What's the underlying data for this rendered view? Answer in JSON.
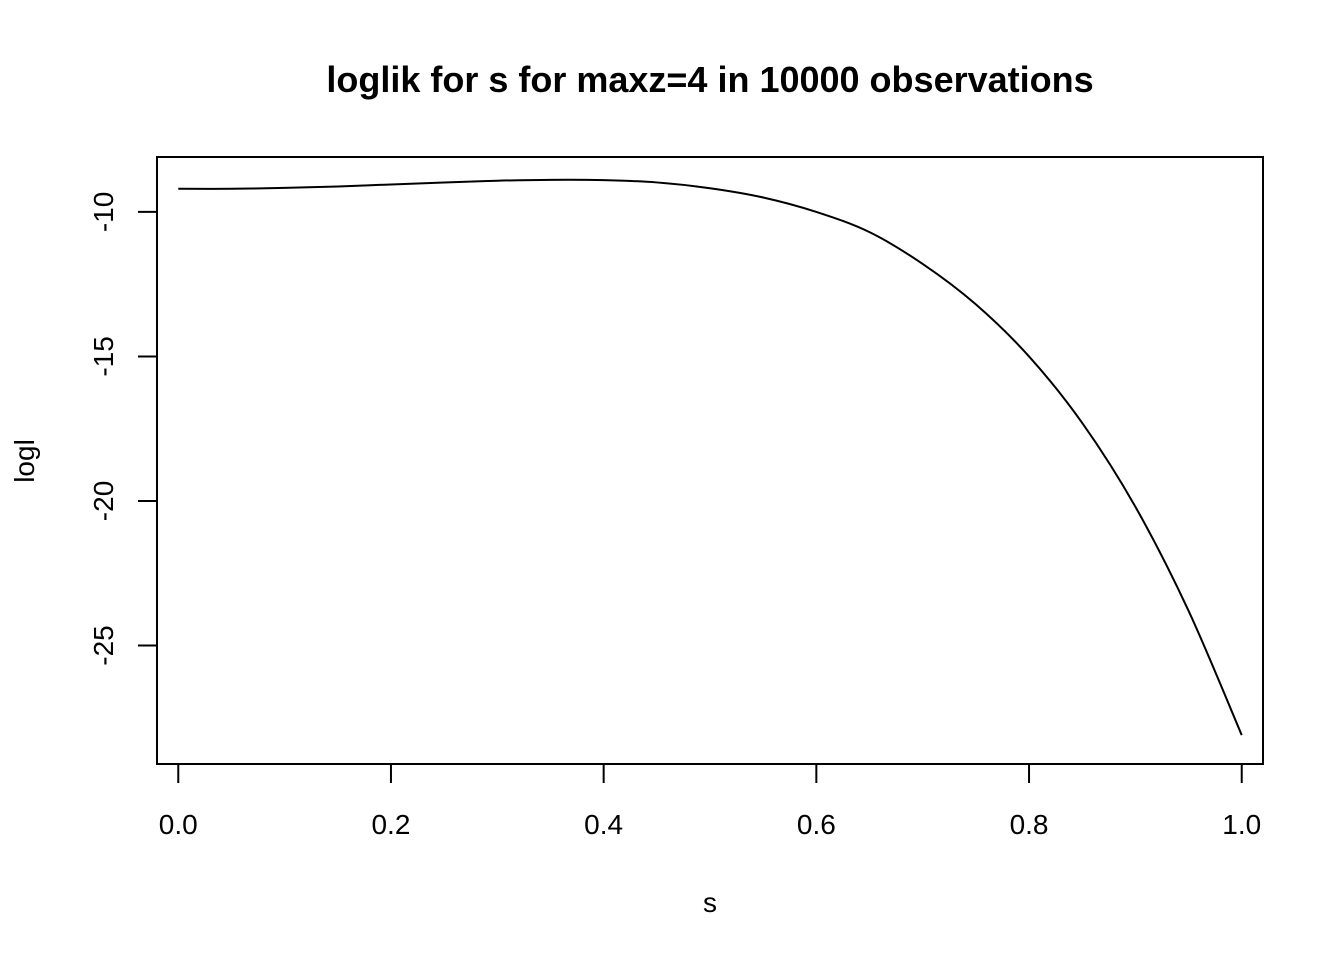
{
  "chart_data": {
    "type": "line",
    "title": "loglik for s for maxz=4 in 10000 observations",
    "xlabel": "s",
    "ylabel": "logl",
    "xlim": [
      -0.02,
      1.02
    ],
    "ylim": [
      -29.1,
      -8.1
    ],
    "grid": false,
    "legend": "none",
    "line_color": "#000000",
    "x_ticks": [
      0.0,
      0.2,
      0.4,
      0.6,
      0.8,
      1.0
    ],
    "x_tick_labels": [
      "0.0",
      "0.2",
      "0.4",
      "0.6",
      "0.8",
      "1.0"
    ],
    "y_ticks": [
      -10,
      -15,
      -20,
      -25
    ],
    "y_tick_labels": [
      "-10",
      "-15",
      "-20",
      "-25"
    ],
    "series": [
      {
        "x": [
          0.0,
          0.05,
          0.1,
          0.15,
          0.2,
          0.25,
          0.3,
          0.35,
          0.4,
          0.45,
          0.5,
          0.55,
          0.6,
          0.65,
          0.7,
          0.75,
          0.8,
          0.85,
          0.9,
          0.95,
          1.0
        ],
        "y": [
          -9.2,
          -9.2,
          -9.17,
          -9.12,
          -9.05,
          -8.98,
          -8.92,
          -8.89,
          -8.9,
          -8.98,
          -9.18,
          -9.5,
          -10.0,
          -10.7,
          -11.8,
          -13.2,
          -15.0,
          -17.3,
          -20.2,
          -23.8,
          -28.1
        ]
      }
    ]
  }
}
